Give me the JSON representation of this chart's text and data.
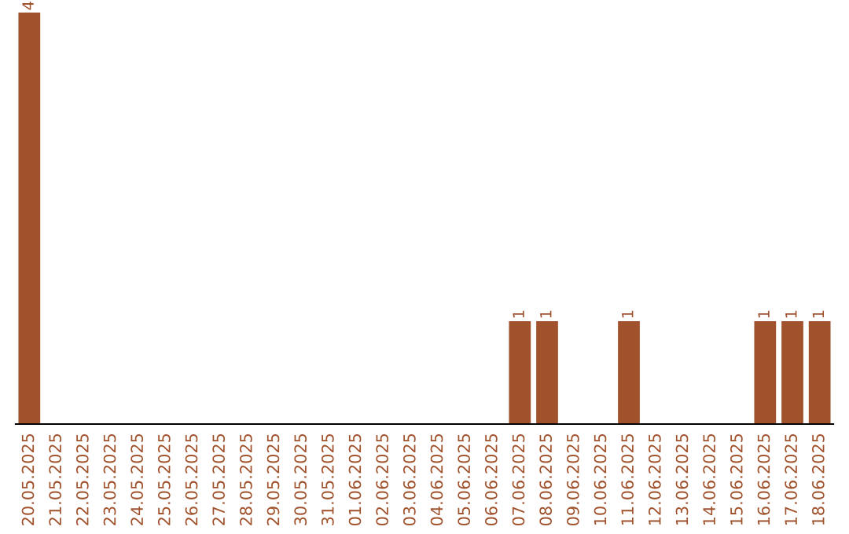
{
  "chart_data": {
    "type": "bar",
    "categories": [
      "20.05.2025",
      "21.05.2025",
      "22.05.2025",
      "23.05.2025",
      "24.05.2025",
      "25.05.2025",
      "26.05.2025",
      "27.05.2025",
      "28.05.2025",
      "29.05.2025",
      "30.05.2025",
      "31.05.2025",
      "01.06.2025",
      "02.06.2025",
      "03.06.2025",
      "04.06.2025",
      "05.06.2025",
      "06.06.2025",
      "07.06.2025",
      "08.06.2025",
      "09.06.2025",
      "10.06.2025",
      "11.06.2025",
      "12.06.2025",
      "13.06.2025",
      "14.06.2025",
      "15.06.2025",
      "16.06.2025",
      "17.06.2025",
      "18.06.2025"
    ],
    "values": [
      4,
      0,
      0,
      0,
      0,
      0,
      0,
      0,
      0,
      0,
      0,
      0,
      0,
      0,
      0,
      0,
      0,
      0,
      1,
      1,
      0,
      0,
      1,
      0,
      0,
      0,
      0,
      1,
      1,
      1
    ],
    "value_labels": [
      "4",
      null,
      null,
      null,
      null,
      null,
      null,
      null,
      null,
      null,
      null,
      null,
      null,
      null,
      null,
      null,
      null,
      null,
      "1",
      "1",
      null,
      null,
      "1",
      null,
      null,
      null,
      null,
      "1",
      "1",
      "1"
    ],
    "color": "#a0522d",
    "grid": false,
    "legend": false
  }
}
